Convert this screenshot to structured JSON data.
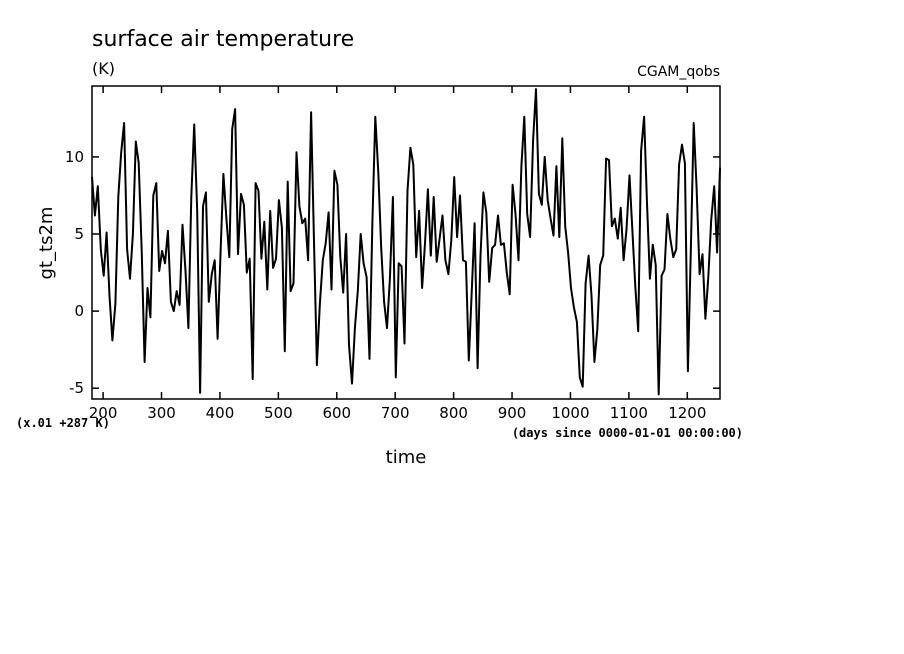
{
  "chart_data": {
    "type": "line",
    "title": "surface air temperature",
    "units": "(K)",
    "dataset_label": "CGAM_qobs",
    "xlabel": "time",
    "ylabel": "gt_ts2m",
    "x_unit_note": "(days since 0000-01-01 00:00:00)",
    "y_scale_note": "(x.01 +287 K)",
    "xlim": [
      181,
      1256
    ],
    "ylim": [
      -5.7,
      14.6
    ],
    "x_ticks": [
      200,
      300,
      400,
      500,
      600,
      700,
      800,
      900,
      1000,
      1100,
      1200
    ],
    "x_tick_labels": [
      "200",
      "300",
      "400",
      "500",
      "600",
      "700",
      "800",
      "900",
      "1000",
      "1100",
      "1200"
    ],
    "y_ticks": [
      -5,
      0,
      5,
      10
    ],
    "y_tick_labels": [
      "-5",
      "0",
      "5",
      "10"
    ],
    "grid": false,
    "series": [
      {
        "name": "gt_ts2m",
        "x": [
          181,
          186,
          191,
          196,
          201,
          206,
          211,
          216,
          221,
          226,
          231,
          236,
          241,
          246,
          251,
          256,
          261,
          266,
          271,
          276,
          281,
          286,
          291,
          296,
          301,
          306,
          311,
          316,
          321,
          326,
          331,
          336,
          341,
          346,
          351,
          356,
          361,
          366,
          371,
          376,
          381,
          386,
          391,
          396,
          401,
          406,
          411,
          416,
          421,
          426,
          431,
          436,
          441,
          446,
          451,
          456,
          461,
          466,
          471,
          476,
          481,
          486,
          491,
          496,
          501,
          506,
          511,
          516,
          521,
          526,
          531,
          536,
          541,
          546,
          551,
          556,
          561,
          566,
          571,
          576,
          581,
          586,
          591,
          596,
          601,
          606,
          611,
          616,
          621,
          626,
          631,
          636,
          641,
          646,
          651,
          656,
          661,
          666,
          671,
          676,
          681,
          686,
          691,
          696,
          701,
          706,
          711,
          716,
          721,
          726,
          731,
          736,
          741,
          746,
          751,
          756,
          761,
          766,
          771,
          776,
          781,
          786,
          791,
          796,
          801,
          806,
          811,
          816,
          821,
          826,
          831,
          836,
          841,
          846,
          851,
          856,
          861,
          866,
          871,
          876,
          881,
          886,
          891,
          896,
          901,
          906,
          911,
          916,
          921,
          926,
          931,
          936,
          941,
          946,
          951,
          956,
          961,
          966,
          971,
          976,
          981,
          986,
          991,
          996,
          1001,
          1006,
          1011,
          1016,
          1021,
          1026,
          1031,
          1036,
          1041,
          1046,
          1051,
          1056,
          1061,
          1066,
          1071,
          1076,
          1081,
          1086,
          1091,
          1096,
          1101,
          1106,
          1111,
          1116,
          1121,
          1126,
          1131,
          1136,
          1141,
          1146,
          1151,
          1156,
          1161,
          1166,
          1171,
          1176,
          1181,
          1186,
          1191,
          1196,
          1201,
          1206,
          1211,
          1216,
          1221,
          1226,
          1231,
          1236,
          1241,
          1246,
          1251,
          1256
        ],
        "y": [
          8.7,
          6.2,
          8.1,
          4.0,
          2.3,
          5.1,
          1.0,
          -1.9,
          0.5,
          7.4,
          10.3,
          12.2,
          4.0,
          2.1,
          5.0,
          11.0,
          9.6,
          3.9,
          -3.3,
          1.5,
          -0.4,
          7.5,
          8.3,
          2.6,
          3.9,
          3.1,
          5.2,
          0.6,
          0.0,
          1.3,
          0.4,
          5.6,
          2.6,
          -1.1,
          7.4,
          12.1,
          6.5,
          -5.3,
          6.8,
          7.7,
          0.6,
          2.4,
          3.3,
          -1.8,
          3.7,
          8.9,
          6.0,
          3.5,
          11.8,
          13.1,
          3.7,
          7.6,
          6.9,
          2.5,
          3.4,
          -4.4,
          8.3,
          7.8,
          3.4,
          5.8,
          1.4,
          6.5,
          2.8,
          3.4,
          7.2,
          5.4,
          -2.6,
          8.4,
          1.3,
          1.8,
          10.3,
          6.8,
          5.7,
          6.0,
          3.3,
          12.9,
          4.5,
          -3.5,
          0.4,
          3.3,
          4.4,
          6.4,
          1.4,
          9.1,
          8.2,
          3.5,
          1.2,
          5.0,
          -2.2,
          -4.7,
          -1.1,
          1.3,
          5.0,
          3.1,
          2.2,
          -3.1,
          5.8,
          12.6,
          9.0,
          4.1,
          0.6,
          -1.1,
          2.1,
          7.4,
          -4.3,
          3.1,
          2.9,
          -2.1,
          7.8,
          10.6,
          9.5,
          3.5,
          6.5,
          1.5,
          4.4,
          7.9,
          3.6,
          7.4,
          3.2,
          4.7,
          6.2,
          3.3,
          2.4,
          4.6,
          8.7,
          4.8,
          7.5,
          3.3,
          3.2,
          -3.2,
          1.2,
          5.7,
          -3.7,
          3.6,
          7.7,
          6.4,
          1.9,
          4.1,
          4.3,
          6.2,
          4.3,
          4.4,
          2.5,
          1.1,
          8.2,
          6.3,
          3.3,
          9.4,
          12.6,
          6.3,
          4.8,
          11.1,
          14.4,
          7.6,
          6.9,
          10.0,
          7.2,
          6.0,
          4.9,
          9.4,
          4.8,
          11.2,
          5.5,
          3.8,
          1.5,
          0.2,
          -0.7,
          -4.3,
          -4.9,
          1.8,
          3.6,
          1.0,
          -3.3,
          -1.2,
          3.0,
          3.6,
          9.9,
          9.8,
          5.5,
          6.0,
          4.7,
          6.7,
          3.3,
          5.3,
          8.8,
          5.2,
          1.6,
          -1.3,
          10.4,
          12.6,
          7.0,
          2.1,
          4.3,
          3.0,
          -5.4,
          2.3,
          2.7,
          6.3,
          4.7,
          3.5,
          4.0,
          9.5,
          10.8,
          9.6,
          -3.9,
          3.9,
          12.2,
          8.0,
          2.4,
          3.7,
          -0.5,
          2.2,
          5.9,
          8.1,
          3.8,
          9.3
        ]
      }
    ]
  }
}
